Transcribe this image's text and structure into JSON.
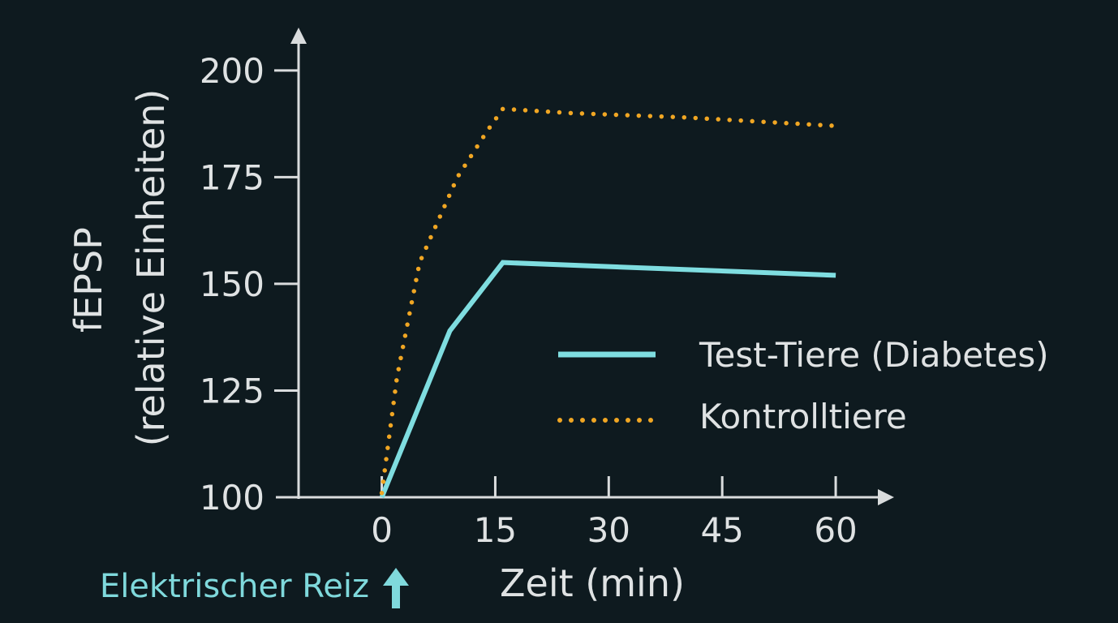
{
  "chart_data": {
    "type": "line",
    "xlabel": "Zeit (min)",
    "ylabel_line1": "fEPSP",
    "ylabel_line2": "(relative Einheiten)",
    "xlim": [
      -11,
      66
    ],
    "ylim": [
      100,
      207
    ],
    "x_ticks": [
      0,
      15,
      30,
      45,
      60
    ],
    "y_ticks": [
      100,
      125,
      150,
      175,
      200
    ],
    "series": [
      {
        "name": "Test-Tiere (Diabetes)",
        "style": "solid",
        "color": "#7fdde0",
        "x": [
          0,
          9,
          16,
          60
        ],
        "y": [
          100,
          139,
          155,
          152
        ]
      },
      {
        "name": "Kontrolltiere",
        "style": "dotted",
        "color": "#f0a623",
        "x": [
          0,
          2,
          5,
          10,
          14,
          16,
          25,
          40,
          60
        ],
        "y": [
          101,
          128,
          155,
          175,
          186,
          191,
          190,
          189,
          187
        ]
      }
    ],
    "annotation": {
      "text": "Elektrischer Reiz",
      "x": 0,
      "color": "#7fd9dc"
    },
    "legend_position": "right"
  }
}
